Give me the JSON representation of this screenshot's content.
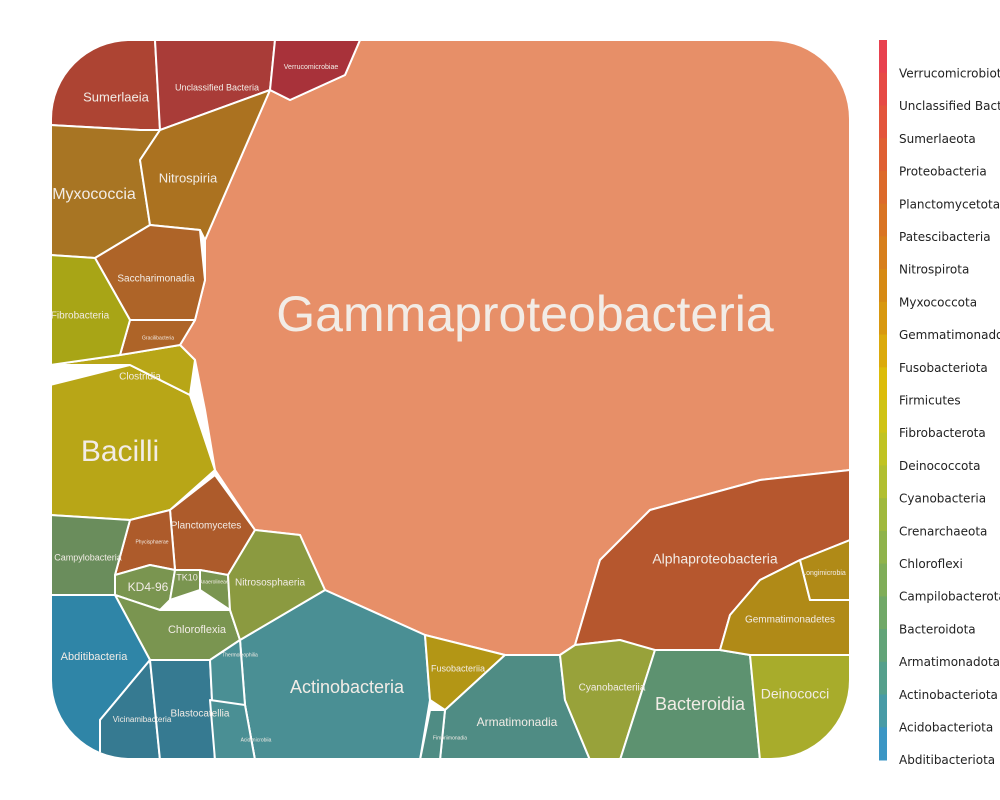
{
  "chart_data": {
    "type": "treemap",
    "legend_position": "right",
    "legend": [
      {
        "label": "Verrucomicrobiota",
        "color": "#e8414f"
      },
      {
        "label": "Unclassified Bacteria",
        "color": "#e64a45"
      },
      {
        "label": "Sumerlaeota",
        "color": "#e3553c"
      },
      {
        "label": "Proteobacteria",
        "color": "#df6033"
      },
      {
        "label": "Planctomycetota",
        "color": "#dc6a2b"
      },
      {
        "label": "Patescibacteria",
        "color": "#d97423"
      },
      {
        "label": "Nitrospirota",
        "color": "#d77f1c"
      },
      {
        "label": "Myxococcota",
        "color": "#d68a14"
      },
      {
        "label": "Gemmatimonadota",
        "color": "#d8980f"
      },
      {
        "label": "Fusobacteriota",
        "color": "#dbaa0c"
      },
      {
        "label": "Firmicutes",
        "color": "#dcbc0a"
      },
      {
        "label": "Fibrobacterota",
        "color": "#cfc315"
      },
      {
        "label": "Deinococcota",
        "color": "#c0c322"
      },
      {
        "label": "Cyanobacteria",
        "color": "#b1bf30"
      },
      {
        "label": "Crenarchaeota",
        "color": "#a0b93d"
      },
      {
        "label": "Chloroflexi",
        "color": "#8fb34b"
      },
      {
        "label": "Campilobacterota",
        "color": "#7fad58"
      },
      {
        "label": "Bacteroidota",
        "color": "#70a867"
      },
      {
        "label": "Armatimonadota",
        "color": "#62a478"
      },
      {
        "label": "Actinobacteriota",
        "color": "#55a08c"
      },
      {
        "label": "Acidobacteriota",
        "color": "#489ba6"
      },
      {
        "label": "Abditibacteriota",
        "color": "#3b96c4"
      }
    ],
    "cells": [
      {
        "label": "Gammaproteobacteria",
        "phylum": "Proteobacteria",
        "color": "#e78f68"
      },
      {
        "label": "Alphaproteobacteria",
        "phylum": "Proteobacteria",
        "color": "#b6572e"
      },
      {
        "label": "Bacilli",
        "phylum": "Firmicutes",
        "color": "#b8a617"
      },
      {
        "label": "Clostridia",
        "phylum": "Firmicutes",
        "color": "#b8a617"
      },
      {
        "label": "Actinobacteria",
        "phylum": "Actinobacteriota",
        "color": "#4a8f94"
      },
      {
        "label": "Sumerlaeia",
        "phylum": "Sumerlaeota",
        "color": "#ad4433"
      },
      {
        "label": "Unclassified Bacteria",
        "phylum": "Unclassified Bacteria",
        "color": "#a93c38"
      },
      {
        "label": "Verrucomicrobiae",
        "phylum": "Verrucomicrobiota",
        "color": "#a8323a"
      },
      {
        "label": "Myxococcia",
        "phylum": "Myxococcota",
        "color": "#a87523"
      },
      {
        "label": "Nitrospiria",
        "phylum": "Nitrospirota",
        "color": "#ab7220"
      },
      {
        "label": "Saccharimonadia",
        "phylum": "Patescibacteria",
        "color": "#ae6428"
      },
      {
        "label": "Gracilibacteria",
        "phylum": "Patescibacteria",
        "color": "#ae6428"
      },
      {
        "label": "Fibrobacteria",
        "phylum": "Fibrobacterota",
        "color": "#a8a516"
      },
      {
        "label": "Planctomycetes",
        "phylum": "Planctomycetota",
        "color": "#ad5b2b"
      },
      {
        "label": "Phycisphaerae",
        "phylum": "Planctomycetota",
        "color": "#ad5b2b"
      },
      {
        "label": "Campylobacteria",
        "phylum": "Campilobacterota",
        "color": "#6a8d5c"
      },
      {
        "label": "KD4-96",
        "phylum": "Chloroflexi",
        "color": "#7a9550"
      },
      {
        "label": "TK10",
        "phylum": "Chloroflexi",
        "color": "#7a9550"
      },
      {
        "label": "Anaerolineae",
        "phylum": "Chloroflexi",
        "color": "#7a9550"
      },
      {
        "label": "Chloroflexia",
        "phylum": "Chloroflexi",
        "color": "#7a9550"
      },
      {
        "label": "Nitrososphaeria",
        "phylum": "Crenarchaeota",
        "color": "#8b9a40"
      },
      {
        "label": "Abditibacteria",
        "phylum": "Abditibacteriota",
        "color": "#2f85a7"
      },
      {
        "label": "Vicinamibacteria",
        "phylum": "Acidobacteriota",
        "color": "#367a91"
      },
      {
        "label": "Blastocatellia",
        "phylum": "Acidobacteriota",
        "color": "#367a91"
      },
      {
        "label": "Thermoleophilia",
        "phylum": "Actinobacteriota",
        "color": "#4a8f94"
      },
      {
        "label": "Acidimicrobiia",
        "phylum": "Actinobacteriota",
        "color": "#4a8f94"
      },
      {
        "label": "Fusobacteriia",
        "phylum": "Fusobacteriota",
        "color": "#b39615"
      },
      {
        "label": "Armatimonadia",
        "phylum": "Armatimonadota",
        "color": "#4f8c84"
      },
      {
        "label": "Fimbriimonadia",
        "phylum": "Armatimonadota",
        "color": "#4f8c84"
      },
      {
        "label": "Cyanobacteriia",
        "phylum": "Cyanobacteria",
        "color": "#98a23a"
      },
      {
        "label": "Bacteroidia",
        "phylum": "Bacteroidota",
        "color": "#5d9270"
      },
      {
        "label": "Deinococci",
        "phylum": "Deinococcota",
        "color": "#a8ac2b"
      },
      {
        "label": "Gemmatimonadetes",
        "phylum": "Gemmatimonadota",
        "color": "#b08a17"
      },
      {
        "label": "Longimicrobia",
        "phylum": "Gemmatimonadota",
        "color": "#b08a17"
      }
    ]
  }
}
